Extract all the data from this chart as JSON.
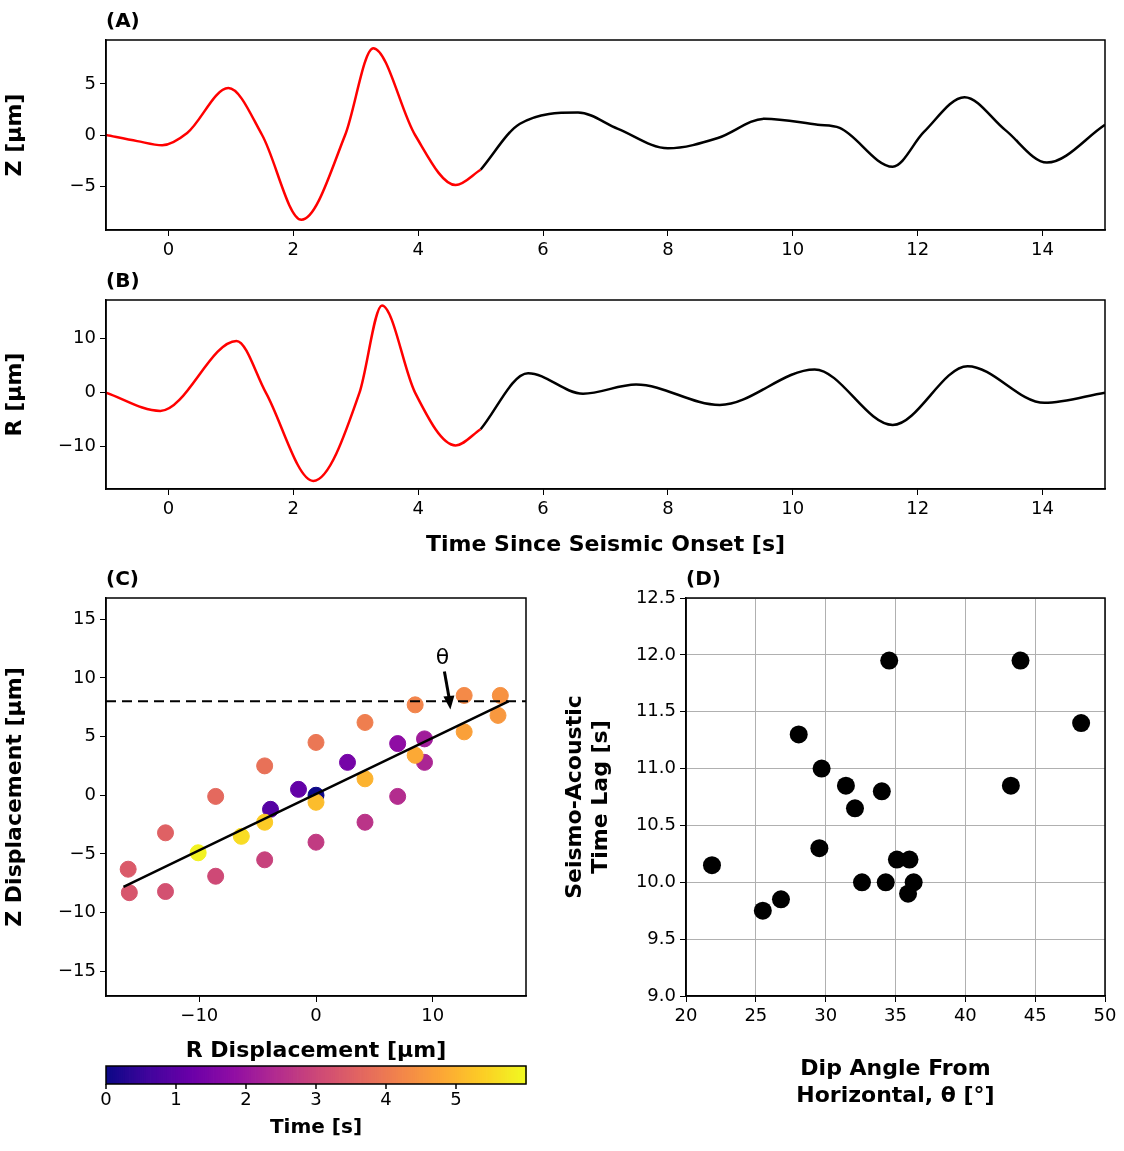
{
  "chart_data": [
    {
      "type": "line",
      "title": "(A)",
      "ylabel": "Z [μm]",
      "xlim": [
        -1,
        15
      ],
      "xticks": [
        0,
        2,
        4,
        6,
        8,
        10,
        12,
        14
      ],
      "ylim": [
        -9.3,
        9.3
      ],
      "yticks": [
        {
          "value": -5,
          "label": "−5"
        },
        0,
        5
      ],
      "series": [
        {
          "color": "#ff0000",
          "x": [
            -1,
            -0.5,
            -0.1,
            0.3,
            0.96,
            1.5,
            2.13,
            2.83,
            3.28,
            3.95,
            4.6,
            5.0
          ],
          "values": [
            0,
            -0.6,
            -1.0,
            0.2,
            4.6,
            0,
            -8.3,
            0,
            8.5,
            0,
            -4.9,
            -3.4
          ]
        },
        {
          "color": "#000000",
          "x": [
            5,
            5.63,
            6.56,
            7.2,
            8.0,
            8.8,
            9.55,
            10.4,
            10.75,
            11.6,
            12.1,
            12.75,
            13.4,
            14.07,
            15
          ],
          "values": [
            -3.4,
            1.1,
            2.2,
            0.6,
            -1.3,
            -0.3,
            1.6,
            1.0,
            0.7,
            -3.1,
            0.3,
            3.7,
            0.5,
            -2.7,
            1.0
          ]
        }
      ]
    },
    {
      "type": "line",
      "title": "(B)",
      "ylabel": "R [μm]",
      "xlabel": "Time Since Seismic Onset [s]",
      "xlim": [
        -1,
        15
      ],
      "xticks": [
        0,
        2,
        4,
        6,
        8,
        10,
        12,
        14
      ],
      "ylim": [
        -17.9,
        17.2
      ],
      "yticks": [
        {
          "value": -10,
          "label": "−10"
        },
        0,
        10
      ],
      "series": [
        {
          "color": "#ff0000",
          "x": [
            -1,
            -0.13,
            1.09,
            1.56,
            2.32,
            3.06,
            3.42,
            3.95,
            4.6,
            5
          ],
          "values": [
            0,
            -3.4,
            9.6,
            0,
            -16.4,
            0,
            16.2,
            0,
            -9.8,
            -6.8
          ]
        },
        {
          "color": "#000000",
          "x": [
            5,
            5.76,
            6.64,
            7.49,
            8.83,
            10.35,
            11.6,
            12.8,
            14.03,
            15
          ],
          "values": [
            -6.8,
            3.6,
            -0.2,
            1.5,
            -2.3,
            4.3,
            -6.0,
            4.9,
            -1.9,
            0
          ]
        }
      ]
    },
    {
      "type": "scatter",
      "title": "(C)",
      "xlabel": "R Displacement [μm]",
      "ylabel": "Z Displacement [μm]",
      "clabel": "Time [s]",
      "clim": [
        0,
        6
      ],
      "cticks": [
        0,
        1,
        2,
        3,
        4,
        5
      ],
      "xlim": [
        -18,
        18
      ],
      "xticks": [
        {
          "value": -10,
          "label": "−10"
        },
        0,
        10
      ],
      "ylim": [
        -17.1,
        16.8
      ],
      "yticks": [
        {
          "value": -15,
          "label": "−15"
        },
        {
          "value": -10,
          "label": "−10"
        },
        {
          "value": -5,
          "label": "−5"
        },
        0,
        5,
        10,
        15
      ],
      "ref_lines": [
        {
          "axis": "y",
          "value": 8,
          "color": "#000000",
          "line_style": "dashed"
        }
      ],
      "annotations": [
        "θ"
      ],
      "series": [
        {
          "marker": "circle",
          "x": [
            0,
            -3.9,
            -1.5,
            2.7,
            7.0,
            9.3,
            9.3,
            7,
            4.2,
            0,
            -4.4,
            -8.6,
            -12.9,
            -16,
            -16.1,
            -12.9,
            -8.6,
            -4.4,
            0,
            4.2,
            8.5,
            12.7,
            15.8,
            15.6,
            12.7,
            8.5,
            4.2,
            0,
            -4.4,
            -6.4,
            -10.1
          ],
          "values": [
            0,
            -1.2,
            0.5,
            2.8,
            4.4,
            4.8,
            2.8,
            -0.1,
            -2.3,
            -4.0,
            -5.5,
            -6.9,
            -8.2,
            -8.3,
            -6.3,
            -3.2,
            -0.1,
            2.5,
            4.5,
            6.2,
            7.7,
            8.5,
            8.5,
            6.8,
            5.4,
            3.4,
            1.4,
            -0.6,
            -2.3,
            -3.5,
            -4.9
          ],
          "colors": [
            "#0d0887",
            "#5602a3",
            "#6301a6",
            "#7604a7",
            "#8f0da4",
            "#a01c9a",
            "#ab2593",
            "#b32c8e",
            "#ba3488",
            "#c13b82",
            "#c7427c",
            "#ce4976",
            "#d35171",
            "#d7566d",
            "#da5a69",
            "#df6164",
            "#e4695e",
            "#e87158",
            "#eb7755",
            "#ef7e4f",
            "#f2844b",
            "#f48a48",
            "#f79241",
            "#f8983f",
            "#faa039",
            "#fca935",
            "#fcb330",
            "#fcbd2c",
            "#fccb26",
            "#f8dc24",
            "#f2f222"
          ],
          "cvalues": [
            0,
            0.9,
            1.1,
            1.4,
            1.8,
            2.1,
            2.3,
            2.45,
            2.6,
            2.75,
            2.9,
            3.05,
            3.2,
            3.3,
            3.4,
            3.55,
            3.7,
            3.85,
            3.95,
            4.1,
            4.2,
            4.3,
            4.42,
            4.55,
            4.7,
            4.85,
            5.0,
            5.15,
            5.35,
            5.6,
            5.9
          ]
        },
        {
          "type": "line",
          "marker": "none",
          "color": "#000000",
          "x": [
            -16.5,
            16.5
          ],
          "values": [
            -7.8,
            8.0
          ]
        }
      ]
    },
    {
      "type": "scatter",
      "title": "(D)",
      "xlabel": "Dip Angle From\nHorizontal, θ [°]",
      "ylabel": "Seismo-Acoustic\nTime Lag [s]",
      "grid": true,
      "marker": "circle",
      "color": "#000000",
      "xlim": [
        20,
        50
      ],
      "xticks": [
        20,
        25,
        30,
        35,
        40,
        45,
        50
      ],
      "ylim": [
        9,
        12.5
      ],
      "yticks": [
        {
          "value": 9,
          "label": "9.0"
        },
        9.5,
        {
          "value": 10,
          "label": "10.0"
        },
        10.5,
        {
          "value": 11,
          "label": "11.0"
        },
        11.5,
        {
          "value": 12,
          "label": "12.0"
        },
        12.5
      ],
      "x": [
        34.55,
        43.95,
        48.29,
        28.07,
        29.71,
        31.45,
        34.02,
        32.1,
        43.26,
        29.55,
        21.86,
        35.1,
        36.0,
        32.6,
        34.3,
        36.3,
        35.9,
        26.8,
        25.5
      ],
      "values": [
        11.95,
        11.95,
        11.4,
        11.3,
        11.0,
        10.85,
        10.8,
        10.65,
        10.85,
        10.3,
        10.15,
        10.2,
        10.2,
        10.0,
        10.0,
        10.0,
        9.9,
        9.85,
        9.75
      ]
    }
  ]
}
